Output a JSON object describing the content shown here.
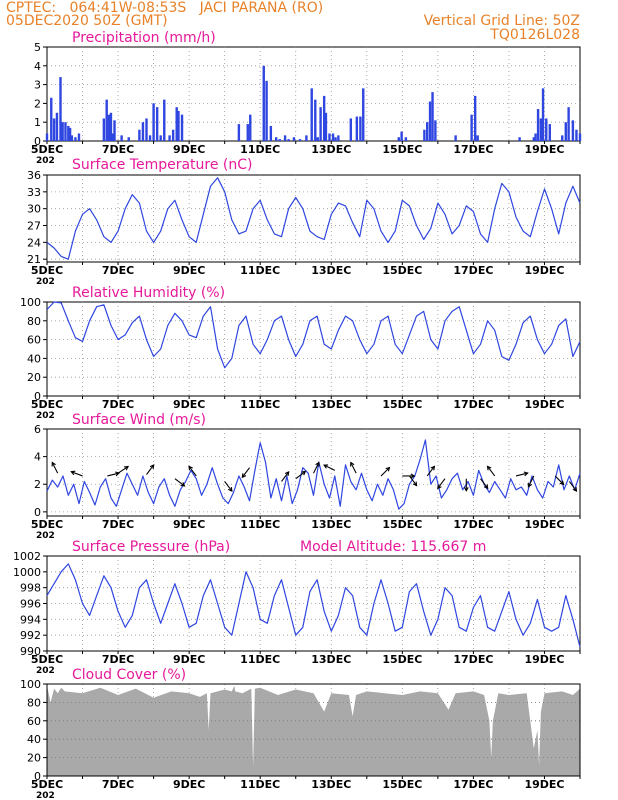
{
  "header": {
    "line1_left": "CPTEC:   064:41W-08:53S   JACI PARANA (RO)",
    "line2_left": "05DEC2020 50Z (GMT)",
    "line2_right": "Vertical Grid Line: 50Z",
    "line3_right": "TQ0126L028"
  },
  "colors": {
    "header": "#e8822a",
    "panel_title": "#e6199a",
    "series": "#2f46e0",
    "cloud": "#a9a9a9",
    "arrow": "#000000"
  },
  "x_axis": {
    "tick_labels": [
      "5DEC",
      "7DEC",
      "9DEC",
      "11DEC",
      "13DEC",
      "15DEC",
      "17DEC",
      "19DEC"
    ],
    "start_day": 5,
    "end_day": 20,
    "subaxis_fragment": "202"
  },
  "chart_data": [
    {
      "id": "precip",
      "type": "bar",
      "title": "Precipitation (mm/h)",
      "ylim": [
        0,
        5
      ],
      "yticks": [
        0,
        1,
        2,
        3,
        4,
        5
      ],
      "xrange_days": [
        5,
        20
      ],
      "x_unit": "day of December 2020",
      "grid": true,
      "x": [
        5.0,
        5.12,
        5.2,
        5.28,
        5.38,
        5.44,
        5.52,
        5.6,
        5.65,
        5.7,
        5.8,
        5.9,
        6.6,
        6.68,
        6.74,
        6.8,
        6.85,
        6.9,
        7.1,
        7.3,
        7.6,
        7.7,
        7.8,
        7.9,
        8.0,
        8.1,
        8.2,
        8.3,
        8.45,
        8.55,
        8.65,
        8.7,
        8.8,
        10.4,
        10.65,
        10.72,
        11.1,
        11.18,
        11.3,
        11.45,
        11.55,
        11.7,
        11.8,
        11.95,
        12.12,
        12.3,
        12.45,
        12.55,
        12.62,
        12.7,
        12.8,
        12.85,
        12.95,
        13.05,
        13.12,
        13.2,
        13.55,
        13.72,
        13.82,
        13.9,
        14.9,
        14.98,
        15.1,
        15.62,
        15.7,
        15.78,
        15.85,
        15.93,
        16.5,
        16.95,
        17.05,
        17.12,
        18.3,
        18.7,
        18.75,
        18.82,
        18.9,
        18.96,
        19.05,
        19.15,
        19.5,
        19.6,
        19.68,
        19.8,
        19.9,
        20.0
      ],
      "values": [
        0.4,
        2.3,
        1.2,
        1.5,
        3.4,
        1.0,
        1.0,
        0.8,
        0.7,
        0.3,
        0.2,
        0.4,
        1.2,
        2.2,
        1.4,
        1.5,
        0.4,
        1.1,
        0.3,
        0.2,
        0.6,
        1.0,
        1.2,
        0.3,
        2.0,
        1.8,
        0.3,
        2.2,
        0.3,
        0.6,
        1.8,
        1.6,
        1.4,
        0.9,
        0.9,
        1.4,
        4.0,
        3.2,
        0.8,
        0.2,
        0.1,
        0.3,
        0.1,
        0.2,
        0.1,
        0.3,
        2.8,
        2.2,
        0.2,
        1.8,
        2.4,
        1.5,
        0.4,
        0.4,
        0.2,
        0.3,
        1.2,
        1.3,
        1.3,
        2.8,
        0.2,
        0.5,
        0.2,
        0.6,
        1.0,
        2.1,
        2.6,
        1.1,
        0.3,
        1.4,
        2.4,
        0.3,
        0.2,
        0.2,
        0.4,
        1.7,
        1.2,
        2.8,
        1.2,
        0.9,
        0.3,
        1.0,
        1.8,
        1.1,
        0.6,
        0.4
      ]
    },
    {
      "id": "temp",
      "type": "line",
      "title": "Surface Temperature (nC)",
      "ylim": [
        20.5,
        36
      ],
      "yticks": [
        21,
        24,
        27,
        30,
        33,
        36
      ],
      "xrange_days": [
        5,
        20
      ],
      "x_unit": "day of December 2020",
      "grid": true,
      "x": [
        5.0,
        5.2,
        5.4,
        5.6,
        5.8,
        6.0,
        6.2,
        6.4,
        6.6,
        6.8,
        7.0,
        7.2,
        7.4,
        7.6,
        7.8,
        8.0,
        8.2,
        8.4,
        8.6,
        8.8,
        9.0,
        9.2,
        9.4,
        9.6,
        9.8,
        10.0,
        10.2,
        10.4,
        10.6,
        10.8,
        11.0,
        11.2,
        11.4,
        11.6,
        11.8,
        12.0,
        12.2,
        12.4,
        12.6,
        12.8,
        13.0,
        13.2,
        13.4,
        13.6,
        13.8,
        14.0,
        14.2,
        14.4,
        14.6,
        14.8,
        15.0,
        15.2,
        15.4,
        15.6,
        15.8,
        16.0,
        16.2,
        16.4,
        16.6,
        16.8,
        17.0,
        17.2,
        17.4,
        17.6,
        17.8,
        18.0,
        18.2,
        18.4,
        18.6,
        18.8,
        19.0,
        19.2,
        19.4,
        19.6,
        19.8,
        20.0
      ],
      "values": [
        24.0,
        23.0,
        21.5,
        21.0,
        26.0,
        29.0,
        30.0,
        28.0,
        25.0,
        24.0,
        26.0,
        30.0,
        32.5,
        31.0,
        26.0,
        24.0,
        26.0,
        30.0,
        31.5,
        28.0,
        25.0,
        24.0,
        29.0,
        34.0,
        35.5,
        33.0,
        28.0,
        25.5,
        26.0,
        30.0,
        31.5,
        28.0,
        25.5,
        25.0,
        30.0,
        32.0,
        30.0,
        26.0,
        25.0,
        24.5,
        29.0,
        31.0,
        30.5,
        27.5,
        25.0,
        31.5,
        30.0,
        26.0,
        24.0,
        26.0,
        31.5,
        30.5,
        27.0,
        24.5,
        26.5,
        31.0,
        29.0,
        25.5,
        27.0,
        30.5,
        29.5,
        25.5,
        24.0,
        30.0,
        34.5,
        33.0,
        28.5,
        26.0,
        25.0,
        29.5,
        33.5,
        30.0,
        25.5,
        31.0,
        34.0,
        31.0
      ]
    },
    {
      "id": "rh",
      "type": "line",
      "title": "Relative Humidity (%)",
      "ylim": [
        0,
        100
      ],
      "yticks": [
        0,
        20,
        40,
        60,
        80,
        100
      ],
      "xrange_days": [
        5,
        20
      ],
      "x_unit": "day of December 2020",
      "grid": true,
      "x": [
        5.0,
        5.2,
        5.4,
        5.6,
        5.8,
        6.0,
        6.2,
        6.4,
        6.6,
        6.8,
        7.0,
        7.2,
        7.4,
        7.6,
        7.8,
        8.0,
        8.2,
        8.4,
        8.6,
        8.8,
        9.0,
        9.2,
        9.4,
        9.6,
        9.8,
        10.0,
        10.2,
        10.4,
        10.6,
        10.8,
        11.0,
        11.2,
        11.4,
        11.6,
        11.8,
        12.0,
        12.2,
        12.4,
        12.6,
        12.8,
        13.0,
        13.2,
        13.4,
        13.6,
        13.8,
        14.0,
        14.2,
        14.4,
        14.6,
        14.8,
        15.0,
        15.2,
        15.4,
        15.6,
        15.8,
        16.0,
        16.2,
        16.4,
        16.6,
        16.8,
        17.0,
        17.2,
        17.4,
        17.6,
        17.8,
        18.0,
        18.2,
        18.4,
        18.6,
        18.8,
        19.0,
        19.2,
        19.4,
        19.6,
        19.8,
        20.0
      ],
      "values": [
        92.0,
        100.0,
        99.0,
        80.0,
        62.0,
        58.0,
        80.0,
        95.0,
        97.0,
        75.0,
        60.0,
        65.0,
        78.0,
        85.0,
        60.0,
        42.0,
        50.0,
        75.0,
        88.0,
        80.0,
        65.0,
        62.0,
        85.0,
        95.0,
        50.0,
        30.0,
        40.0,
        75.0,
        85.0,
        55.0,
        45.0,
        60.0,
        80.0,
        85.0,
        60.0,
        42.0,
        55.0,
        80.0,
        85.0,
        55.0,
        50.0,
        70.0,
        85.0,
        80.0,
        60.0,
        45.0,
        55.0,
        80.0,
        85.0,
        55.0,
        45.0,
        65.0,
        85.0,
        90.0,
        60.0,
        50.0,
        80.0,
        90.0,
        95.0,
        70.0,
        45.0,
        55.0,
        80.0,
        70.0,
        42.0,
        38.0,
        55.0,
        78.0,
        85.0,
        60.0,
        45.0,
        55.0,
        75.0,
        82.0,
        42.0,
        58.0
      ]
    },
    {
      "id": "wind",
      "type": "line",
      "title": "Surface Wind (m/s)",
      "ylim": [
        -0.3,
        6
      ],
      "yticks": [
        0,
        2,
        4,
        6
      ],
      "xrange_days": [
        5,
        20
      ],
      "x_unit": "day of December 2020",
      "grid": true,
      "x": [
        5.0,
        5.15,
        5.3,
        5.45,
        5.6,
        5.75,
        5.9,
        6.05,
        6.2,
        6.35,
        6.5,
        6.65,
        6.8,
        6.95,
        7.1,
        7.25,
        7.4,
        7.55,
        7.7,
        7.85,
        8.0,
        8.15,
        8.3,
        8.45,
        8.6,
        8.75,
        8.9,
        9.05,
        9.2,
        9.35,
        9.5,
        9.65,
        9.8,
        9.95,
        10.1,
        10.25,
        10.4,
        10.55,
        10.7,
        10.85,
        11.0,
        11.15,
        11.3,
        11.45,
        11.6,
        11.75,
        11.9,
        12.05,
        12.2,
        12.35,
        12.5,
        12.65,
        12.8,
        12.95,
        13.1,
        13.25,
        13.4,
        13.55,
        13.7,
        13.85,
        14.0,
        14.15,
        14.3,
        14.45,
        14.6,
        14.75,
        14.9,
        15.05,
        15.2,
        15.35,
        15.5,
        15.65,
        15.8,
        15.95,
        16.1,
        16.25,
        16.4,
        16.55,
        16.7,
        16.85,
        17.0,
        17.15,
        17.3,
        17.45,
        17.6,
        17.75,
        17.9,
        18.05,
        18.2,
        18.35,
        18.5,
        18.65,
        18.8,
        18.95,
        19.1,
        19.25,
        19.4,
        19.55,
        19.7,
        19.85,
        20.0
      ],
      "values": [
        1.5,
        2.3,
        1.8,
        2.6,
        1.2,
        2.0,
        0.6,
        2.2,
        1.4,
        0.5,
        1.8,
        2.4,
        1.0,
        0.4,
        1.6,
        2.8,
        2.0,
        1.2,
        2.6,
        1.4,
        0.6,
        1.8,
        2.4,
        1.2,
        0.4,
        1.6,
        2.2,
        3.0,
        2.4,
        1.2,
        2.0,
        3.2,
        2.0,
        1.0,
        0.6,
        1.4,
        2.6,
        1.8,
        0.8,
        3.0,
        5.0,
        3.6,
        1.0,
        2.4,
        0.8,
        2.6,
        0.6,
        1.6,
        3.2,
        2.8,
        1.2,
        3.6,
        2.0,
        1.0,
        2.6,
        0.4,
        3.4,
        2.2,
        1.6,
        2.8,
        1.6,
        0.8,
        2.0,
        1.2,
        2.4,
        1.6,
        0.2,
        0.6,
        2.0,
        2.6,
        3.8,
        5.2,
        2.0,
        2.6,
        1.0,
        1.6,
        2.4,
        2.8,
        1.6,
        2.2,
        1.2,
        3.0,
        2.0,
        1.4,
        2.2,
        1.6,
        1.0,
        2.4,
        1.6,
        1.8,
        1.2,
        2.6,
        1.6,
        1.0,
        2.2,
        1.8,
        3.4,
        1.6,
        2.6,
        1.6,
        2.8
      ],
      "arrows": [
        {
          "x": 5.3,
          "y": 2.8,
          "dx": -2.0,
          "dy": 4.0
        },
        {
          "x": 6.0,
          "y": 2.6,
          "dx": -4.0,
          "dy": 1.5
        },
        {
          "x": 6.7,
          "y": 2.6,
          "dx": 4.0,
          "dy": 1.0
        },
        {
          "x": 7.0,
          "y": 2.8,
          "dx": 3.0,
          "dy": 2.0
        },
        {
          "x": 7.8,
          "y": 2.7,
          "dx": 3.0,
          "dy": 4.0
        },
        {
          "x": 8.6,
          "y": 2.4,
          "dx": 4.0,
          "dy": -3.0
        },
        {
          "x": 9.2,
          "y": 2.6,
          "dx": -3.0,
          "dy": 4.0
        },
        {
          "x": 10.0,
          "y": 2.2,
          "dx": 3.0,
          "dy": -4.0
        },
        {
          "x": 10.7,
          "y": 3.2,
          "dx": -3.0,
          "dy": -4.0
        },
        {
          "x": 11.6,
          "y": 2.2,
          "dx": 3.0,
          "dy": 4.0
        },
        {
          "x": 12.0,
          "y": 2.4,
          "dx": 4.0,
          "dy": 3.0
        },
        {
          "x": 12.5,
          "y": 2.8,
          "dx": 2.0,
          "dy": 4.0
        },
        {
          "x": 13.1,
          "y": 3.0,
          "dx": -4.0,
          "dy": 2.0
        },
        {
          "x": 13.7,
          "y": 2.8,
          "dx": -2.0,
          "dy": 4.0
        },
        {
          "x": 14.4,
          "y": 2.6,
          "dx": 3.0,
          "dy": 3.0
        },
        {
          "x": 15.0,
          "y": 2.6,
          "dx": 4.0,
          "dy": 0.0
        },
        {
          "x": 15.2,
          "y": 2.6,
          "dx": 3.0,
          "dy": -4.0
        },
        {
          "x": 15.7,
          "y": 2.6,
          "dx": 3.0,
          "dy": 4.0
        },
        {
          "x": 16.2,
          "y": 2.4,
          "dx": -3.0,
          "dy": -4.0
        },
        {
          "x": 16.8,
          "y": 2.4,
          "dx": 0.0,
          "dy": -4.0
        },
        {
          "x": 17.2,
          "y": 2.4,
          "dx": 3.0,
          "dy": -4.0
        },
        {
          "x": 17.6,
          "y": 2.6,
          "dx": -3.0,
          "dy": 4.0
        },
        {
          "x": 18.2,
          "y": 2.6,
          "dx": 4.0,
          "dy": 1.0
        },
        {
          "x": 18.7,
          "y": 2.6,
          "dx": -2.0,
          "dy": -4.0
        },
        {
          "x": 19.3,
          "y": 2.6,
          "dx": 3.0,
          "dy": -3.0
        },
        {
          "x": 19.7,
          "y": 2.2,
          "dx": 3.0,
          "dy": -4.0
        }
      ]
    },
    {
      "id": "pres",
      "type": "line",
      "title": "Surface Pressure (hPa)",
      "annotation": "Model Altitude: 115.667 m",
      "ylim": [
        990,
        1002
      ],
      "yticks": [
        990,
        992,
        994,
        996,
        998,
        1000,
        1002
      ],
      "xrange_days": [
        5,
        20
      ],
      "x_unit": "day of December 2020",
      "grid": true,
      "x": [
        5.0,
        5.2,
        5.4,
        5.6,
        5.8,
        6.0,
        6.2,
        6.4,
        6.6,
        6.8,
        7.0,
        7.2,
        7.4,
        7.6,
        7.8,
        8.0,
        8.2,
        8.4,
        8.6,
        8.8,
        9.0,
        9.2,
        9.4,
        9.6,
        9.8,
        10.0,
        10.2,
        10.4,
        10.6,
        10.8,
        11.0,
        11.2,
        11.4,
        11.6,
        11.8,
        12.0,
        12.2,
        12.4,
        12.6,
        12.8,
        13.0,
        13.2,
        13.4,
        13.6,
        13.8,
        14.0,
        14.2,
        14.4,
        14.6,
        14.8,
        15.0,
        15.2,
        15.4,
        15.6,
        15.8,
        16.0,
        16.2,
        16.4,
        16.6,
        16.8,
        17.0,
        17.2,
        17.4,
        17.6,
        17.8,
        18.0,
        18.2,
        18.4,
        18.6,
        18.8,
        19.0,
        19.2,
        19.4,
        19.6,
        19.8,
        20.0
      ],
      "values": [
        997.0,
        998.5,
        1000.0,
        1001.0,
        999.0,
        996.0,
        994.5,
        997.0,
        999.5,
        998.0,
        995.0,
        993.0,
        994.5,
        998.0,
        999.0,
        996.0,
        993.5,
        996.0,
        998.5,
        996.0,
        993.0,
        993.5,
        997.0,
        999.0,
        996.0,
        993.0,
        992.0,
        996.0,
        1000.0,
        998.0,
        994.0,
        993.5,
        997.0,
        999.0,
        995.5,
        992.0,
        993.0,
        997.5,
        999.0,
        995.0,
        992.5,
        994.5,
        998.0,
        997.0,
        993.0,
        992.0,
        996.0,
        999.0,
        996.0,
        992.5,
        993.0,
        997.5,
        998.5,
        995.0,
        992.0,
        994.0,
        998.0,
        997.0,
        993.0,
        992.5,
        995.5,
        997.0,
        993.0,
        992.5,
        995.0,
        997.5,
        994.0,
        992.0,
        993.5,
        996.5,
        993.0,
        992.5,
        993.0,
        997.0,
        994.0,
        990.5
      ]
    },
    {
      "id": "cloud",
      "type": "area",
      "title": "Cloud Cover (%)",
      "ylim": [
        0,
        100
      ],
      "yticks": [
        0,
        20,
        40,
        60,
        80,
        100
      ],
      "xrange_days": [
        5,
        20
      ],
      "x_unit": "day of December 2020",
      "grid": true,
      "x": [
        5.0,
        5.1,
        5.2,
        5.3,
        5.4,
        5.5,
        6.0,
        6.5,
        7.0,
        7.5,
        8.0,
        8.5,
        9.0,
        9.3,
        9.5,
        9.55,
        9.6,
        10.0,
        10.2,
        10.27,
        10.3,
        10.5,
        10.75,
        10.8,
        10.85,
        11.0,
        11.5,
        12.0,
        12.5,
        12.8,
        13.0,
        13.5,
        13.6,
        13.7,
        14.0,
        14.5,
        15.0,
        15.5,
        16.0,
        16.3,
        16.5,
        17.0,
        17.3,
        17.45,
        17.5,
        17.55,
        17.7,
        18.0,
        18.5,
        18.7,
        18.8,
        18.85,
        18.9,
        19.0,
        19.5,
        19.8,
        20.0
      ],
      "values": [
        98.0,
        80.0,
        95.0,
        90.0,
        96.0,
        92.0,
        90.0,
        96.0,
        88.0,
        95.0,
        85.0,
        92.0,
        90.0,
        86.0,
        90.0,
        50.0,
        90.0,
        94.0,
        92.0,
        98.0,
        92.0,
        90.0,
        95.0,
        10.0,
        95.0,
        96.0,
        88.0,
        94.0,
        90.0,
        70.0,
        90.0,
        88.0,
        65.0,
        88.0,
        92.0,
        90.0,
        88.0,
        92.0,
        90.0,
        72.0,
        90.0,
        92.0,
        88.0,
        60.0,
        20.0,
        60.0,
        90.0,
        88.0,
        90.0,
        30.0,
        50.0,
        12.0,
        70.0,
        90.0,
        92.0,
        88.0,
        95.0
      ]
    }
  ]
}
